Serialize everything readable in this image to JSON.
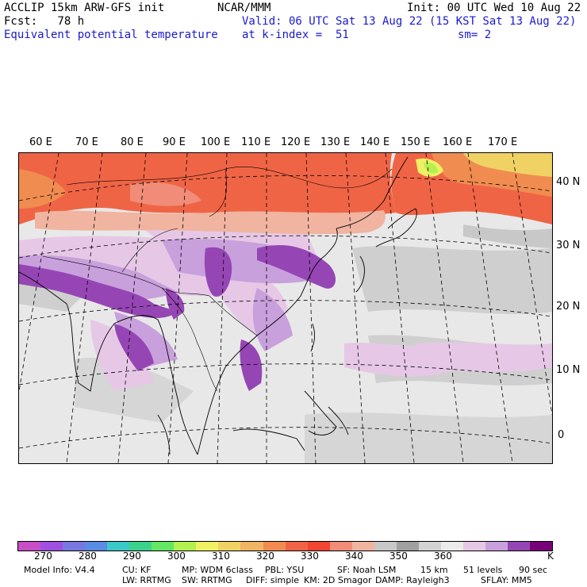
{
  "header": {
    "left": [
      "ACCLIP 15km ARW-GFS init",
      "Fcst:   78 h"
    ],
    "center": "NCAR/MMM",
    "init": "Init: 00 UTC Wed 10 Aug 22",
    "valid": "Valid: 06 UTC Sat 13 Aug 22 (15 KST Sat 13 Aug 22)",
    "field": "Equivalent potential temperature",
    "level": "at k-index =  51",
    "smoothing": "sm= 2"
  },
  "map": {
    "lon_labels": [
      "60 E",
      "70 E",
      "80 E",
      "90 E",
      "100 E",
      "110 E",
      "120 E",
      "130 E",
      "140 E",
      "150 E",
      "160 E",
      "170 E"
    ],
    "lat_labels": [
      "40 N",
      "30 N",
      "20 N",
      "10 N",
      "0"
    ]
  },
  "colorbar": {
    "colors": [
      "#c84fc8",
      "#a050e0",
      "#7878e0",
      "#5a8ce6",
      "#3cc8c8",
      "#3cd28c",
      "#64e664",
      "#b4f050",
      "#f0f064",
      "#f0d264",
      "#f0b464",
      "#f08c50",
      "#f06446",
      "#f04632",
      "#f08c78",
      "#f0b4a0",
      "#c8c8c8",
      "#a0a0a0",
      "#d2d2d2",
      "#ebebeb",
      "#e6c8e6",
      "#c8a0dc",
      "#9646b4",
      "#780078"
    ],
    "labels": [
      "270",
      "280",
      "290",
      "300",
      "310",
      "320",
      "330",
      "340",
      "350",
      "360"
    ],
    "unit": "K"
  },
  "footer": {
    "line1": [
      "Model Info: V4.4",
      "CU: KF",
      "MP: WDM 6class",
      "PBL: YSU",
      "SF: Noah LSM",
      "15 km",
      "51 levels",
      "90 sec"
    ],
    "line2": [
      "LW: RRTMG",
      "SW: RRTMG",
      "DIFF: simple",
      "KM: 2D Smagor",
      "DAMP: Rayleigh3",
      "SFLAY: MM5"
    ]
  }
}
